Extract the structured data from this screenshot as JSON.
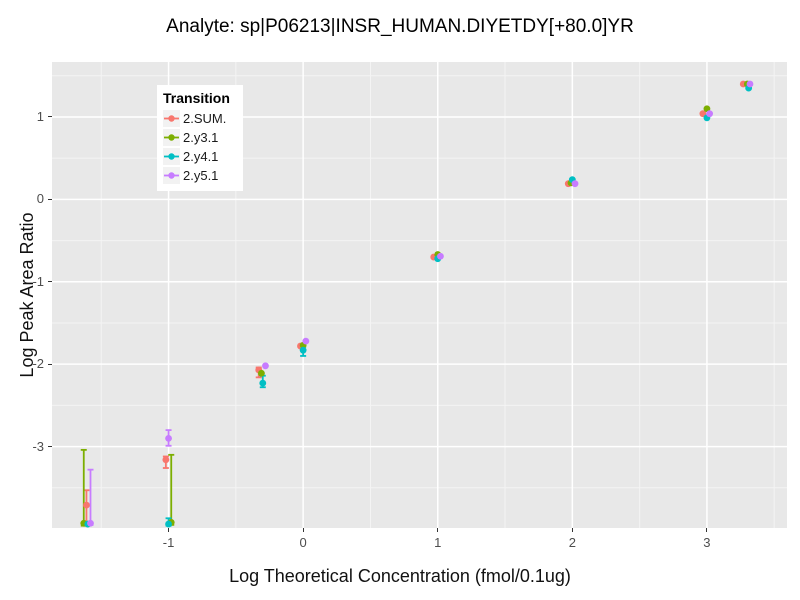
{
  "chart_data": {
    "type": "scatter",
    "title": "Analyte: sp|P06213|INSR_HUMAN.DIYETDY[+80.0]YR",
    "xlabel": "Log Theoretical Concentration (fmol/0.1ug)",
    "ylabel": "Log Peak Area Ratio",
    "xlim": [
      -1.866,
      3.595
    ],
    "ylim": [
      -3.988,
      1.667
    ],
    "x_ticks": [
      -1,
      0,
      1,
      2,
      3
    ],
    "y_ticks": [
      1,
      0,
      -1,
      -2,
      -3
    ],
    "x_minor": [
      -1.5,
      -0.5,
      0.5,
      1.5,
      2.5,
      3.5
    ],
    "y_minor": [
      1.5,
      0.5,
      -0.5,
      -1.5,
      -2.5,
      -3.5
    ],
    "grid": true,
    "legend": {
      "title": "Transition",
      "position": "inside-top-left"
    },
    "style": {
      "panel_bg": "#E8E8E8",
      "grid_major": "#FFFFFF",
      "grid_minor": "#F4F4F4",
      "tick_color": "#333333",
      "tick_label_color": "#4D4D4D",
      "text_color": "#000000",
      "legend_bg": "#FFFFFF",
      "legend_key_bg": "#F2F2F2"
    },
    "series": [
      {
        "name": "2.SUM.",
        "color": "#F8766D",
        "points": [
          {
            "x": -1.61,
            "y": -3.71,
            "err": [
              -3.53,
              -3.96
            ]
          },
          {
            "x": -1.02,
            "y": -3.16,
            "err": [
              -3.12,
              -3.26
            ]
          },
          {
            "x": -0.33,
            "y": -2.07,
            "err": [
              -2.04,
              -2.16
            ]
          },
          {
            "x": -0.02,
            "y": -1.78
          },
          {
            "x": 0.97,
            "y": -0.7
          },
          {
            "x": 1.97,
            "y": 0.19
          },
          {
            "x": 2.97,
            "y": 1.04
          },
          {
            "x": 3.27,
            "y": 1.4
          }
        ]
      },
      {
        "name": "2.y3.1",
        "color": "#7CAE00",
        "points": [
          {
            "x": -1.63,
            "y": -3.93,
            "err": [
              -3.04,
              -3.96
            ]
          },
          {
            "x": -0.98,
            "y": -3.92,
            "err": [
              -3.1,
              -3.95
            ]
          },
          {
            "x": -0.31,
            "y": -2.11
          },
          {
            "x": 0.0,
            "y": -1.77
          },
          {
            "x": 1.0,
            "y": -0.67
          },
          {
            "x": 1.99,
            "y": 0.2
          },
          {
            "x": 3.0,
            "y": 1.1
          },
          {
            "x": 3.3,
            "y": 1.4
          }
        ]
      },
      {
        "name": "2.y4.1",
        "color": "#00BFC4",
        "points": [
          {
            "x": -1.6,
            "y": -3.94
          },
          {
            "x": -1.0,
            "y": -3.94,
            "err": [
              -3.87,
              -3.96
            ]
          },
          {
            "x": -0.3,
            "y": -2.23,
            "err": [
              -2.14,
              -2.28
            ]
          },
          {
            "x": 0.0,
            "y": -1.83,
            "err": [
              -1.79,
              -1.9
            ]
          },
          {
            "x": 1.0,
            "y": -0.72
          },
          {
            "x": 2.0,
            "y": 0.24
          },
          {
            "x": 3.0,
            "y": 0.99
          },
          {
            "x": 3.31,
            "y": 1.35
          }
        ]
      },
      {
        "name": "2.y5.1",
        "color": "#C77CFF",
        "points": [
          {
            "x": -1.58,
            "y": -3.93,
            "err": [
              -3.28,
              -3.95
            ]
          },
          {
            "x": -1.0,
            "y": -2.9,
            "err": [
              -2.8,
              -2.99
            ]
          },
          {
            "x": -0.28,
            "y": -2.02
          },
          {
            "x": 0.02,
            "y": -1.72
          },
          {
            "x": 1.02,
            "y": -0.69
          },
          {
            "x": 2.02,
            "y": 0.19
          },
          {
            "x": 3.02,
            "y": 1.04
          },
          {
            "x": 3.32,
            "y": 1.4
          }
        ]
      }
    ]
  }
}
